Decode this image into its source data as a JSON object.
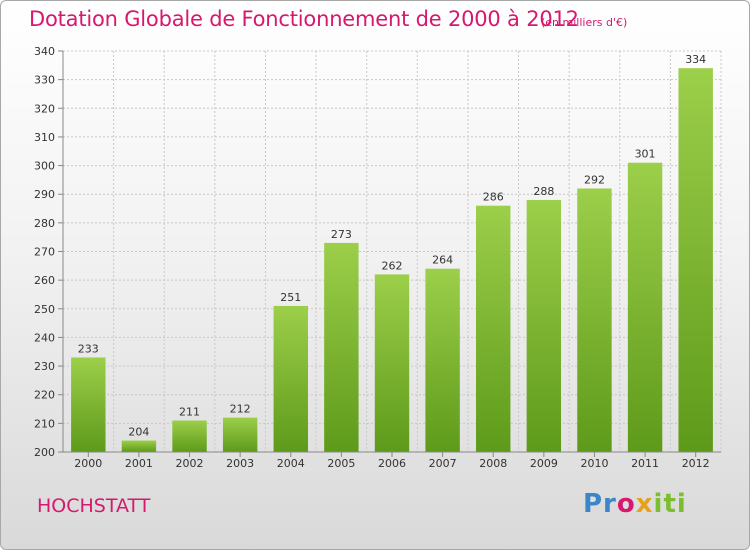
{
  "header": {
    "title": "Dotation Globale de Fonctionnement de 2000 à 2012",
    "subtitle": "(en milliers d'€)"
  },
  "footer": {
    "commune": "HOCHSTATT",
    "logo_text": "Proxiti"
  },
  "colors": {
    "title": "#d6186e",
    "bar_top": "#9ccf4a",
    "bar_bottom": "#5e9a1a",
    "grid": "#c8c8c8"
  },
  "chart_data": {
    "type": "bar",
    "title": "Dotation Globale de Fonctionnement de 2000 à 2012",
    "subtitle": "(en milliers d'€)",
    "xlabel": "",
    "ylabel": "",
    "categories": [
      "2000",
      "2001",
      "2002",
      "2003",
      "2004",
      "2005",
      "2006",
      "2007",
      "2008",
      "2009",
      "2010",
      "2011",
      "2012"
    ],
    "values": [
      233,
      204,
      211,
      212,
      251,
      273,
      262,
      264,
      286,
      288,
      292,
      301,
      334
    ],
    "ylim": [
      200,
      340
    ],
    "yticks": [
      200,
      210,
      220,
      230,
      240,
      250,
      260,
      270,
      280,
      290,
      300,
      310,
      320,
      330,
      340
    ],
    "grid": true,
    "data_labels": true
  }
}
